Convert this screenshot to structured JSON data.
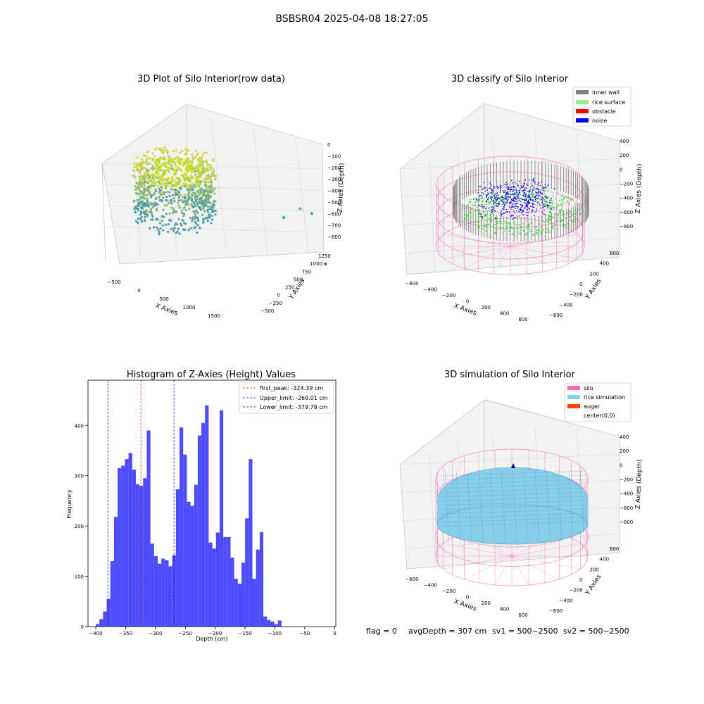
{
  "figure_title": "BSBSR04 2025-04-08 18:27:05",
  "footer": {
    "flag": "flag = 0",
    "avg_depth": "avgDepth = 307 cm",
    "sv1": "sv1 = 500~2500",
    "sv2": "sv2 = 500~2500"
  },
  "colors": {
    "inner_wall": "#808080",
    "rice_surface": "#90ee90",
    "obstacle": "#ff0000",
    "noise": "#0000ff",
    "silo": "#ff69b4",
    "rice_simulation": "#87ceeb",
    "auger": "#ff4500",
    "histogram_bar": "#4d4dff",
    "first_peak_line": "#ff0000",
    "limit_line": "#0000ff"
  },
  "chart_data": [
    {
      "type": "scatter",
      "title": "3D Plot of Silo Interior(row data)",
      "xlabel": "X Axies",
      "ylabel": "Y Axies",
      "zlabel": "Z Axies (Depth)",
      "x_ticks": [
        "−500",
        "0",
        "500",
        "1000",
        "1500"
      ],
      "y_ticks": [
        "−500",
        "−250",
        "0",
        "250",
        "500",
        "750",
        "1000",
        "1250"
      ],
      "z_ticks": [
        "0",
        "−100",
        "−200",
        "−300",
        "−400",
        "−500",
        "−600",
        "−700",
        "−800"
      ],
      "outliers": [
        {
          "x": 1050,
          "y": 200,
          "z": -310
        },
        {
          "x": 1150,
          "y": 250,
          "z": -350
        },
        {
          "x": 900,
          "y": 150,
          "z": -380
        },
        {
          "x": 1450,
          "y": -100,
          "z": -720
        }
      ]
    },
    {
      "type": "scatter",
      "title": "3D classify of Silo Interior",
      "xlabel": "X Axies",
      "ylabel": "Y Axies",
      "zlabel": "Z Axies (Depth)",
      "x_ticks": [
        "−600",
        "−400",
        "−200",
        "0",
        "200",
        "400",
        "600"
      ],
      "y_ticks": [
        "−600",
        "−400",
        "−200",
        "0",
        "200",
        "400",
        "600"
      ],
      "z_ticks": [
        "400",
        "200",
        "0",
        "−200",
        "−400",
        "−600",
        "−800"
      ],
      "legend": [
        "inner wall",
        "rice surface",
        "obstacle",
        "noise"
      ],
      "legend_placement": "top-right"
    },
    {
      "type": "bar",
      "title": "Histogram of Z-Axies (Height) Values",
      "xlabel": "Depth (cm)",
      "ylabel": "Frequency",
      "xlim": [
        -413,
        2
      ],
      "ylim": [
        0,
        490
      ],
      "x_ticks": [
        -400,
        -350,
        -300,
        -250,
        -200,
        -150,
        -100,
        -50,
        0
      ],
      "x_tick_labels": [
        "−400",
        "−350",
        "−300",
        "−250",
        "−200",
        "−150",
        "−100",
        "−50",
        "0"
      ],
      "y_ticks": [
        0,
        100,
        200,
        300,
        400
      ],
      "bin_start": -400,
      "bin_width": 6.1,
      "values": [
        5,
        15,
        30,
        55,
        130,
        218,
        315,
        320,
        333,
        345,
        312,
        283,
        280,
        295,
        390,
        165,
        140,
        125,
        135,
        132,
        120,
        142,
        273,
        396,
        342,
        248,
        240,
        282,
        380,
        405,
        440,
        167,
        155,
        187,
        430,
        178,
        178,
        137,
        95,
        85,
        127,
        215,
        333,
        95,
        153,
        188,
        20,
        13,
        10,
        5,
        12
      ],
      "vlines": [
        {
          "name": "first_peak",
          "value": -324.39,
          "label": "first_peak: -324.39 cm",
          "style": "red dashed"
        },
        {
          "name": "upper_limit",
          "value": -269.01,
          "label": "Upper_limit: -269.01 cm",
          "style": "blue dashed"
        },
        {
          "name": "lower_limit",
          "value": -379.78,
          "label": "Lower_limit: -379.78 cm",
          "style": "blue dashed"
        }
      ],
      "legend_placement": "top-right"
    },
    {
      "type": "scatter",
      "title": "3D simulation of Silo Interior",
      "xlabel": "X Axies",
      "ylabel": "Y Axies",
      "zlabel": "Z Axies (Depth)",
      "x_ticks": [
        "−600",
        "−400",
        "−200",
        "0",
        "200",
        "400",
        "600"
      ],
      "y_ticks": [
        "−600",
        "−400",
        "−200",
        "0",
        "200",
        "400",
        "600"
      ],
      "z_ticks": [
        "400",
        "200",
        "0",
        "−200",
        "−400",
        "−600",
        "−800"
      ],
      "legend": [
        "silo",
        "rice simulation",
        "auger",
        "center(0,0)"
      ],
      "legend_placement": "top-right"
    }
  ]
}
